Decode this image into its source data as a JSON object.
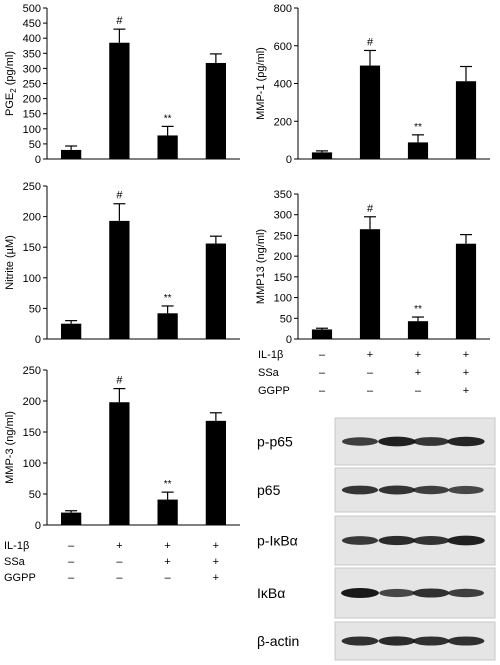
{
  "chart_data": [
    {
      "type": "bar",
      "ylabel": "PGE",
      "ylabel_sub": "2",
      "ylabel_unit": " (pg/ml)",
      "ylim": [
        0,
        500
      ],
      "yticks": [
        0,
        50,
        100,
        150,
        200,
        250,
        300,
        350,
        400,
        450,
        500
      ],
      "values": [
        30,
        385,
        78,
        318
      ],
      "errors": [
        13,
        45,
        30,
        30
      ],
      "annotations": [
        "",
        "#",
        "**",
        ""
      ]
    },
    {
      "type": "bar",
      "ylabel": "MMP-1 (pg/ml)",
      "ylim": [
        0,
        800
      ],
      "yticks": [
        0,
        200,
        400,
        600,
        800
      ],
      "values": [
        35,
        495,
        88,
        412
      ],
      "errors": [
        8,
        80,
        40,
        78
      ],
      "annotations": [
        "",
        "#",
        "**",
        ""
      ]
    },
    {
      "type": "bar",
      "ylabel": "Nitrite (µM)",
      "ylim": [
        0,
        250
      ],
      "yticks": [
        0,
        50,
        100,
        150,
        200,
        250
      ],
      "values": [
        25,
        193,
        42,
        156
      ],
      "errors": [
        5,
        28,
        12,
        12
      ],
      "annotations": [
        "",
        "#",
        "**",
        ""
      ]
    },
    {
      "type": "bar",
      "ylabel": "MMP13 (ng/ml)",
      "ylim": [
        0,
        350
      ],
      "yticks": [
        0,
        50,
        100,
        150,
        200,
        250,
        300,
        350
      ],
      "values": [
        23,
        265,
        43,
        230
      ],
      "errors": [
        3,
        30,
        10,
        22
      ],
      "annotations": [
        "",
        "#",
        "**",
        ""
      ]
    },
    {
      "type": "bar",
      "ylabel": "MMP-3 (ng/ml)",
      "ylim": [
        0,
        250
      ],
      "yticks": [
        0,
        50,
        100,
        150,
        200,
        250
      ],
      "values": [
        20,
        198,
        41,
        168
      ],
      "errors": [
        3,
        22,
        12,
        13
      ],
      "annotations": [
        "",
        "#",
        "**",
        ""
      ]
    }
  ],
  "conditions": {
    "rows": [
      {
        "label": "IL-1β",
        "marks": [
          "–",
          "+",
          "+",
          "+"
        ]
      },
      {
        "label": "SSa",
        "marks": [
          "–",
          "–",
          "+",
          "+"
        ]
      },
      {
        "label": "GGPP",
        "marks": [
          "–",
          "–",
          "–",
          "+"
        ]
      }
    ]
  },
  "blot": {
    "bands": [
      {
        "label": "p-p65",
        "intensity": [
          0.75,
          0.95,
          0.8,
          0.92
        ]
      },
      {
        "label": "p65",
        "intensity": [
          0.8,
          0.82,
          0.75,
          0.7
        ]
      },
      {
        "label": "p-IκBα",
        "intensity": [
          0.78,
          0.88,
          0.82,
          0.95
        ]
      },
      {
        "label": "IκBα",
        "intensity": [
          0.98,
          0.7,
          0.85,
          0.75
        ]
      },
      {
        "label": "β-actin",
        "intensity": [
          0.85,
          0.88,
          0.85,
          0.85
        ]
      }
    ]
  }
}
